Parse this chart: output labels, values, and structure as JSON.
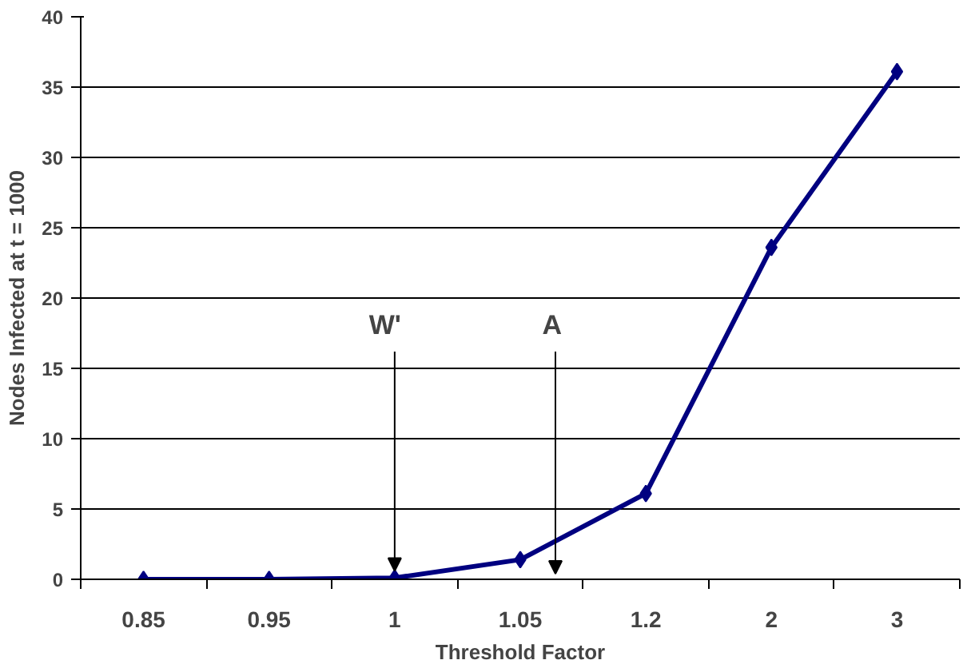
{
  "chart_data": {
    "type": "line",
    "xlabel": "Threshold Factor",
    "ylabel": "Nodes Infected at t = 1000",
    "categories": [
      "0.85",
      "0.95",
      "1",
      "1.05",
      "1.2",
      "2",
      "3"
    ],
    "series": [
      {
        "color": "#000080",
        "values": [
          0,
          0,
          0.1,
          1.4,
          6.1,
          23.6,
          36.1
        ]
      }
    ],
    "ylim": [
      0,
      40
    ],
    "yticks": [
      0,
      5,
      10,
      15,
      20,
      25,
      30,
      35,
      40
    ],
    "grid": "y",
    "marker": "diamond",
    "line_style": "solid",
    "annotations": [
      {
        "text": "W'",
        "x": "1",
        "y": 0.1
      },
      "A"
    ]
  }
}
